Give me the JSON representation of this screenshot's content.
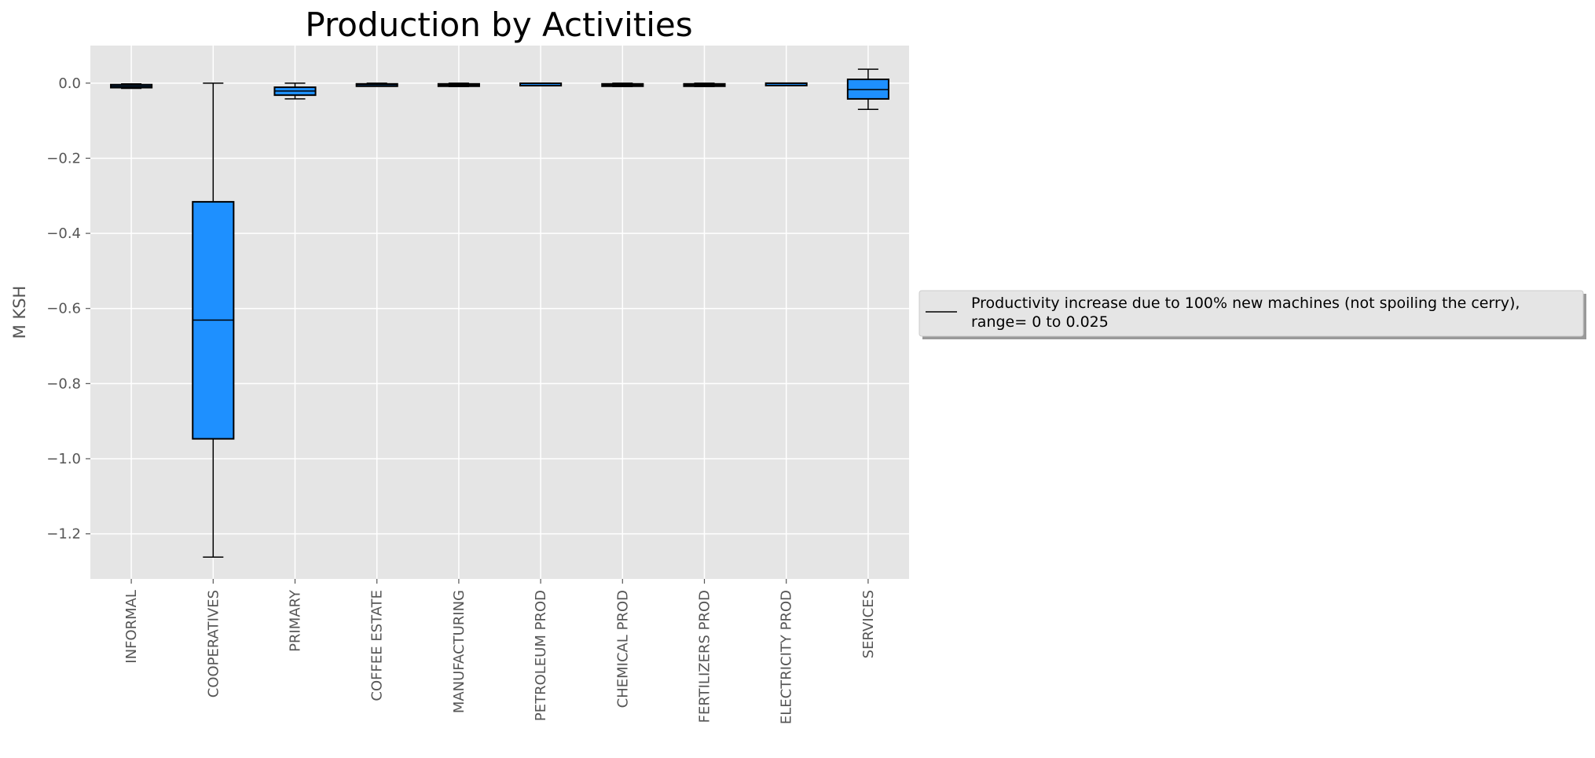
{
  "chart_data": {
    "type": "boxplot",
    "title": "Production by Activities",
    "xlabel": "",
    "ylabel": "M KSH",
    "ylim": [
      -1.32,
      0.1
    ],
    "yticks": [
      0.0,
      -0.2,
      -0.4,
      -0.6,
      -0.8,
      -1.0,
      -1.2
    ],
    "ytick_labels": [
      "0.0",
      "−0.2",
      "−0.4",
      "−0.6",
      "−0.8",
      "−1.0",
      "−1.2"
    ],
    "grid": true,
    "legend_position": "center-right outside",
    "categories": [
      "INFORMAL",
      "COOPERATIVES",
      "PRIMARY",
      "COFFEE ESTATE",
      "MANUFACTURING",
      "PETROLEUM PROD",
      "CHEMICAL PROD",
      "FERTILIZERS PROD",
      "ELECTRICITY PROD",
      "SERVICES"
    ],
    "series": [
      {
        "name": "Productivity increase due to 100% new machines (not spoiling the cerry),\n range= 0 to 0.025",
        "boxes": [
          {
            "whisker_low": -0.014,
            "q1": -0.012,
            "median": -0.008,
            "q3": -0.004,
            "whisker_high": -0.002
          },
          {
            "whisker_low": -1.262,
            "q1": -0.947,
            "median": -0.631,
            "q3": -0.316,
            "whisker_high": 0.0
          },
          {
            "whisker_low": -0.042,
            "q1": -0.032,
            "median": -0.021,
            "q3": -0.011,
            "whisker_high": 0.0
          },
          {
            "whisker_low": -0.008,
            "q1": -0.006,
            "median": -0.004,
            "q3": -0.002,
            "whisker_high": 0.0
          },
          {
            "whisker_low": -0.009,
            "q1": -0.007,
            "median": -0.005,
            "q3": -0.002,
            "whisker_high": 0.0
          },
          {
            "whisker_low": -0.002,
            "q1": -0.0015,
            "median": -0.001,
            "q3": -0.0005,
            "whisker_high": 0.0
          },
          {
            "whisker_low": -0.009,
            "q1": -0.007,
            "median": -0.005,
            "q3": -0.002,
            "whisker_high": 0.0
          },
          {
            "whisker_low": -0.009,
            "q1": -0.007,
            "median": -0.005,
            "q3": -0.002,
            "whisker_high": 0.0
          },
          {
            "whisker_low": -0.001,
            "q1": -0.0008,
            "median": -0.0005,
            "q3": -0.0002,
            "whisker_high": 0.0
          },
          {
            "whisker_low": -0.07,
            "q1": -0.042,
            "median": -0.017,
            "q3": 0.01,
            "whisker_high": 0.037
          }
        ]
      }
    ],
    "colors": {
      "plot_background": "#e5e5e5",
      "grid": "#ffffff",
      "box_fill": "#1e90ff",
      "box_edge": "#000000",
      "legend_background": "#e5e5e5"
    }
  }
}
